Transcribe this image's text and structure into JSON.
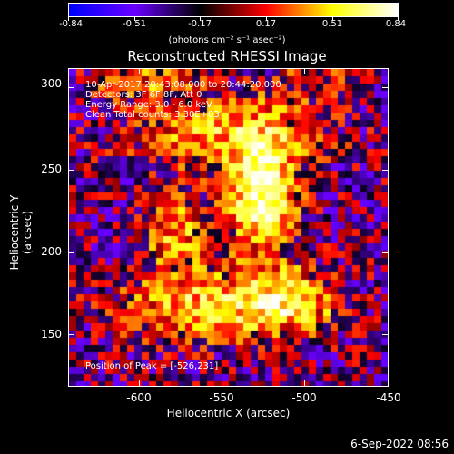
{
  "colorbar": {
    "tick_labels": [
      "-0.84",
      "-0.51",
      "-0.17",
      "0.17",
      "0.51",
      "0.84"
    ],
    "units_label": "(photons cm⁻² s⁻¹ asec⁻²)"
  },
  "plot": {
    "title": "Reconstructed RHESSI Image",
    "info_lines": [
      "10-Apr-2017 20:43:08.000 to 20:44:20.000",
      "Detectors: 3F 6F 8F, Att 0",
      "Energy Range: 3.0 - 6.0 keV",
      "Clean     Total counts: 3.30E+03"
    ],
    "peak_label": "Position of Peak = [-526,231]"
  },
  "chart_data": {
    "type": "heatmap",
    "title": "Reconstructed RHESSI Image",
    "xlabel": "Heliocentric X (arcsec)",
    "ylabel": "Heliocentric Y (arcsec)",
    "xlim": [
      -643,
      -450
    ],
    "ylim": [
      118,
      312
    ],
    "x_ticks": [
      -600,
      -550,
      -500,
      -450
    ],
    "x_tick_labels": [
      "-600",
      "-550",
      "-500",
      "-450"
    ],
    "y_ticks": [
      150,
      200,
      250,
      300
    ],
    "y_tick_labels": [
      "150",
      "200",
      "250",
      "300"
    ],
    "color_range": [
      -0.84,
      0.84
    ],
    "colormap": [
      "#0000ff",
      "#6a00ff",
      "#000000",
      "#ff0000",
      "#ffff00",
      "#ffffff"
    ],
    "peak": [
      -526,
      231
    ],
    "sources": [
      {
        "x": -526,
        "y": 236,
        "sx": 14,
        "sy": 24,
        "amp": 0.84
      },
      {
        "x": -548,
        "y": 272,
        "sx": 40,
        "sy": 16,
        "amp": 0.45
      },
      {
        "x": -600,
        "y": 304,
        "sx": 22,
        "sy": 8,
        "amp": 0.35
      },
      {
        "x": -578,
        "y": 212,
        "sx": 15,
        "sy": 15,
        "amp": 0.45
      },
      {
        "x": -560,
        "y": 167,
        "sx": 36,
        "sy": 15,
        "amp": 0.55
      },
      {
        "x": -508,
        "y": 170,
        "sx": 20,
        "sy": 14,
        "amp": 0.48
      },
      {
        "x": -495,
        "y": 305,
        "sx": 20,
        "sy": 10,
        "amp": 0.2
      }
    ]
  },
  "footer": {
    "date": "6-Sep-2022 08:56"
  }
}
